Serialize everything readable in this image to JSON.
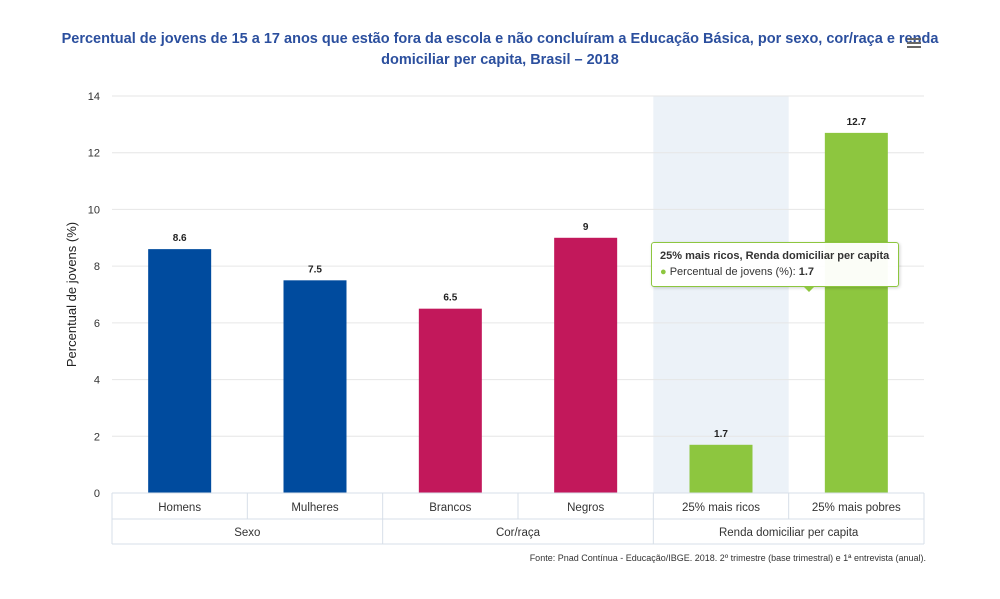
{
  "chart": {
    "title": "Percentual de jovens de 15 a 17 anos que estão fora da escola e não concluíram a Educação Básica, por sexo, cor/raça e renda domiciliar per capita, Brasil – 2018",
    "source": "Fonte: Pnad Contínua - Educação/IBGE. 2018. 2º trimestre (base trimestral) e 1ª entrevista (anual).",
    "menu_icon": "hamburger-menu-icon"
  },
  "tooltip": {
    "header": "25% mais ricos, Renda domiciliar per capita",
    "series_label": "Percentual de jovens (%):",
    "value": "1.7",
    "border_color": "#8dc63f"
  },
  "chart_data": {
    "type": "bar",
    "ylabel": "Percentual de jovens (%)",
    "ylim": [
      0,
      14
    ],
    "yticks": [
      0,
      2,
      4,
      6,
      8,
      10,
      12,
      14
    ],
    "grid": true,
    "categories": [
      "Homens",
      "Mulheres",
      "Brancos",
      "Negros",
      "25% mais ricos",
      "25% mais pobres"
    ],
    "groups": [
      {
        "label": "Sexo",
        "count": 2
      },
      {
        "label": "Cor/raça",
        "count": 2
      },
      {
        "label": "Renda domiciliar per capita",
        "count": 2
      }
    ],
    "values": [
      8.6,
      7.5,
      6.5,
      9,
      1.7,
      12.7
    ],
    "value_labels": [
      "8.6",
      "7.5",
      "6.5",
      "9",
      "1.7",
      "12.7"
    ],
    "colors": [
      "#004b9e",
      "#004b9e",
      "#c2185b",
      "#c2185b",
      "#8dc63f",
      "#8dc63f"
    ],
    "highlighted_category": "25% mais ricos"
  }
}
